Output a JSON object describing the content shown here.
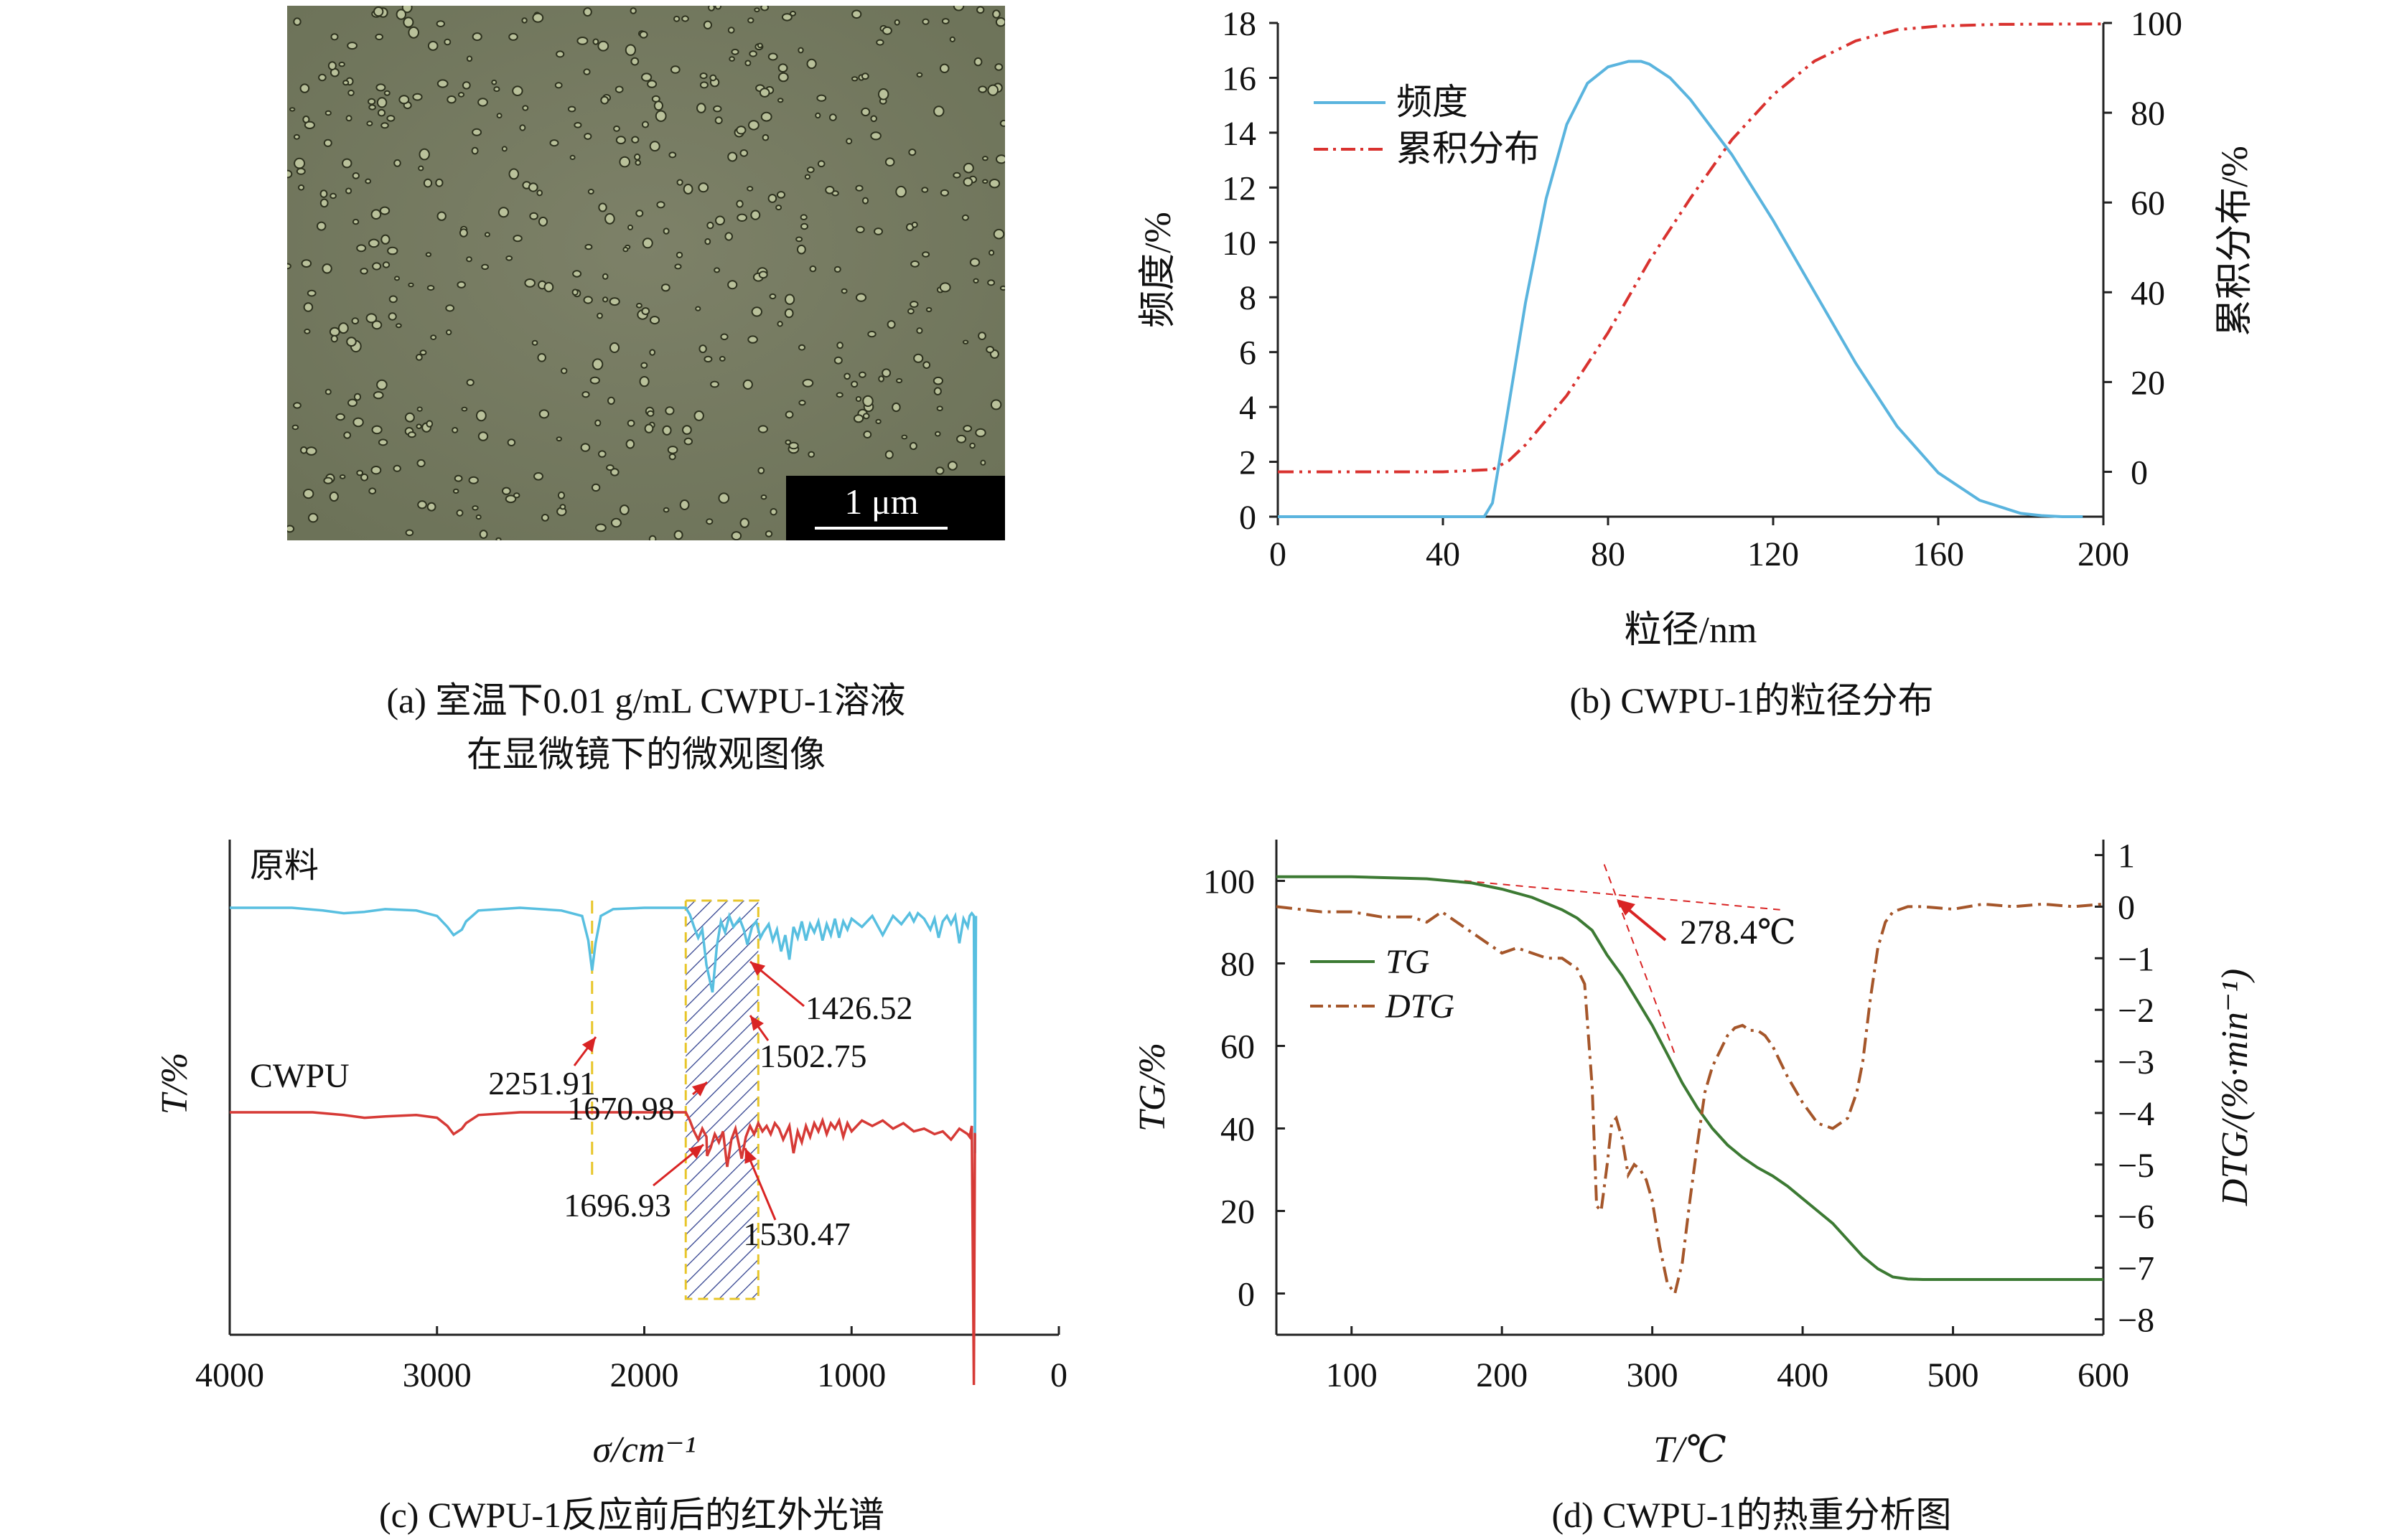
{
  "colors": {
    "freq": "#5ab4de",
    "cum": "#d9322f",
    "tg": "#3c7a33",
    "dtg": "#a5562a",
    "raw": "#58bfe0",
    "cwpu": "#d63a36",
    "hatch": "#2b3c8c",
    "guide": "#e8c62a",
    "arrow": "#d92424",
    "micro_bg": "#737960"
  },
  "panel_a": {
    "scale_bar": "1 μm",
    "caption_line1": "(a) 室温下0.01 g/mL CWPU-1溶液",
    "caption_line2": "在显微镜下的微观图像"
  },
  "panel_b": {
    "caption": "(b) CWPU-1的粒径分布"
  },
  "panel_c": {
    "caption": "(c) CWPU-1反应前后的红外光谱"
  },
  "panel_d": {
    "caption": "(d) CWPU-1的热重分析图"
  },
  "chart_data": [
    {
      "type": "line",
      "xlabel": "粒径/nm",
      "ylabel": "频度/%",
      "y2label": "累积分布/%",
      "xlim": [
        0,
        200
      ],
      "ylim": [
        0,
        18
      ],
      "y2lim": [
        -10,
        100
      ],
      "xticks": [
        "0",
        "40",
        "80",
        "120",
        "160",
        "200"
      ],
      "yticks": [
        "0",
        "2",
        "4",
        "6",
        "8",
        "10",
        "12",
        "14",
        "16",
        "18"
      ],
      "y2ticks": [
        "0",
        "20",
        "40",
        "60",
        "80",
        "100"
      ],
      "legend_position": "top-left",
      "series": [
        {
          "name": "频度",
          "axis": "left",
          "style": "solid",
          "x": [
            0,
            50,
            52,
            55,
            60,
            65,
            70,
            75,
            80,
            85,
            88,
            90,
            95,
            100,
            110,
            120,
            130,
            140,
            150,
            160,
            170,
            180,
            185,
            190,
            195
          ],
          "y": [
            0,
            0,
            0.5,
            3.2,
            7.8,
            11.6,
            14.3,
            15.8,
            16.4,
            16.6,
            16.6,
            16.5,
            16.0,
            15.2,
            13.2,
            10.8,
            8.2,
            5.6,
            3.3,
            1.6,
            0.6,
            0.12,
            0.04,
            0,
            0
          ]
        },
        {
          "name": "累积分布",
          "axis": "right",
          "style": "dashdot",
          "x": [
            0,
            40,
            52,
            56,
            60,
            70,
            80,
            90,
            100,
            110,
            120,
            130,
            140,
            150,
            160,
            175,
            200
          ],
          "y": [
            0,
            0,
            0.5,
            2.5,
            6,
            17,
            31,
            47,
            61,
            74,
            84,
            91.5,
            96,
            98.5,
            99.3,
            99.7,
            99.8
          ]
        }
      ]
    },
    {
      "type": "line",
      "xlabel": "σ/cm⁻¹",
      "ylabel": "T/%",
      "xlim": [
        4000,
        0
      ],
      "xticks": [
        "4000",
        "3000",
        "2000",
        "1000",
        "0"
      ],
      "series": [
        {
          "name": "原料",
          "offset": "top",
          "x": [
            4000,
            3700,
            3550,
            3450,
            3350,
            3250,
            3100,
            3000,
            2950,
            2920,
            2880,
            2860,
            2800,
            2600,
            2400,
            2300,
            2270,
            2251.91,
            2235,
            2210,
            2150,
            2000,
            1800,
            1780,
            1760,
            1740,
            1720,
            1700,
            1670.98,
            1650,
            1630,
            1610,
            1590,
            1570,
            1540,
            1520,
            1502.75,
            1480,
            1460,
            1440,
            1426.52,
            1400,
            1380,
            1360,
            1340,
            1320,
            1300,
            1280,
            1260,
            1240,
            1220,
            1200,
            1180,
            1160,
            1140,
            1120,
            1100,
            1080,
            1060,
            1040,
            1020,
            1000,
            950,
            900,
            850,
            800,
            760,
            720,
            700,
            680,
            650,
            620,
            600,
            580,
            560,
            540,
            520,
            500,
            480,
            460,
            440,
            430,
            420,
            410,
            405,
            400
          ],
          "y": [
            0,
            0,
            -2,
            -4,
            -3,
            -1,
            -2,
            -6,
            -14,
            -20,
            -16,
            -10,
            -2,
            0,
            -2,
            -6,
            -24,
            -46,
            -26,
            -6,
            -1,
            0,
            0,
            -5,
            -14,
            -22,
            -16,
            -42,
            -62,
            -28,
            -10,
            -18,
            -6,
            -14,
            -8,
            -16,
            -27,
            -14,
            -10,
            -22,
            -18,
            -12,
            -24,
            -16,
            -32,
            -20,
            -38,
            -14,
            -22,
            -10,
            -24,
            -12,
            -18,
            -10,
            -24,
            -12,
            -20,
            -8,
            -22,
            -10,
            -16,
            -8,
            -14,
            -6,
            -20,
            -6,
            -12,
            -4,
            -10,
            -4,
            -8,
            -16,
            -8,
            -22,
            -10,
            -6,
            -12,
            -6,
            -26,
            -8,
            -14,
            -6,
            -4,
            -6,
            -180,
            -6
          ]
        },
        {
          "name": "CWPU",
          "offset": "bottom",
          "x": [
            4000,
            3600,
            3450,
            3350,
            3250,
            3100,
            3000,
            2950,
            2920,
            2880,
            2860,
            2800,
            2600,
            2200,
            1900,
            1800,
            1780,
            1760,
            1740,
            1720,
            1700,
            1696.93,
            1680,
            1660,
            1640,
            1620,
            1600,
            1580,
            1560,
            1540,
            1530.47,
            1510,
            1490,
            1470,
            1450,
            1430,
            1410,
            1390,
            1370,
            1350,
            1330,
            1300,
            1280,
            1260,
            1240,
            1220,
            1200,
            1180,
            1160,
            1140,
            1120,
            1100,
            1080,
            1060,
            1040,
            1020,
            1000,
            950,
            900,
            850,
            800,
            750,
            700,
            650,
            600,
            560,
            520,
            480,
            440,
            430,
            420,
            410,
            405,
            400
          ],
          "y": [
            0,
            0,
            -2,
            -4,
            -3,
            -2,
            -4,
            -10,
            -16,
            -12,
            -8,
            -2,
            0,
            0,
            0,
            0,
            -6,
            -14,
            -20,
            -12,
            -18,
            -32,
            -26,
            -16,
            -22,
            -14,
            -40,
            -20,
            -12,
            -26,
            -34,
            -18,
            -10,
            -16,
            -8,
            -14,
            -10,
            -16,
            -8,
            -12,
            -20,
            -10,
            -30,
            -14,
            -22,
            -10,
            -18,
            -8,
            -14,
            -6,
            -16,
            -8,
            -12,
            -6,
            -18,
            -8,
            -14,
            -6,
            -10,
            -6,
            -12,
            -8,
            -14,
            -12,
            -16,
            -14,
            -20,
            -12,
            -16,
            -18,
            -10,
            -200,
            -16,
            -16
          ]
        }
      ],
      "peak_labels": [
        "2251.91",
        "1670.98",
        "1426.52",
        "1502.75",
        "1696.93",
        "1530.47"
      ],
      "series_labels": [
        "原料",
        "CWPU"
      ]
    },
    {
      "type": "line",
      "xlabel": "T/℃",
      "ylabel": "TG/%",
      "y2label": "DTG/(%·min⁻¹)",
      "xlim": [
        50,
        600
      ],
      "ylim": [
        -10,
        110
      ],
      "y2lim": [
        -8.3,
        1.3
      ],
      "xticks": [
        "100",
        "200",
        "300",
        "400",
        "500",
        "600"
      ],
      "yticks": [
        "0",
        "20",
        "40",
        "60",
        "80",
        "100"
      ],
      "y2ticks": [
        "1",
        "0",
        "−1",
        "−2",
        "−3",
        "−4",
        "−5",
        "−6",
        "−7",
        "−8"
      ],
      "legend_position": "left-middle",
      "annotation": "278.4℃",
      "series": [
        {
          "name": "TG",
          "axis": "left",
          "style": "solid",
          "x": [
            50,
            100,
            150,
            180,
            200,
            220,
            240,
            250,
            260,
            270,
            280,
            290,
            300,
            310,
            320,
            330,
            340,
            350,
            360,
            370,
            380,
            390,
            400,
            410,
            420,
            430,
            440,
            450,
            460,
            470,
            480,
            500,
            550,
            600
          ],
          "y": [
            101,
            101,
            100.5,
            99.5,
            98,
            96,
            93,
            91,
            88,
            82,
            77,
            71,
            65,
            58,
            51,
            45,
            40,
            36,
            33,
            30.5,
            28.5,
            26,
            23,
            20,
            17,
            13,
            9,
            6,
            4,
            3.5,
            3.4,
            3.4,
            3.4,
            3.4
          ]
        },
        {
          "name": "DTG",
          "axis": "right",
          "style": "dashdot",
          "x": [
            50,
            80,
            100,
            120,
            140,
            150,
            160,
            170,
            180,
            190,
            200,
            210,
            220,
            230,
            240,
            250,
            255,
            260,
            263,
            266,
            270,
            273,
            276,
            280,
            284,
            288,
            292,
            296,
            300,
            305,
            310,
            315,
            320,
            325,
            330,
            335,
            340,
            345,
            350,
            355,
            360,
            365,
            370,
            375,
            380,
            390,
            400,
            410,
            420,
            430,
            436,
            440,
            445,
            450,
            455,
            460,
            470,
            480,
            500,
            520,
            540,
            560,
            580,
            600
          ],
          "y": [
            0,
            -0.1,
            -0.1,
            -0.2,
            -0.2,
            -0.3,
            -0.1,
            -0.3,
            -0.5,
            -0.7,
            -0.9,
            -0.8,
            -0.9,
            -1.0,
            -1.0,
            -1.2,
            -1.5,
            -3.5,
            -5.8,
            -5.9,
            -5.0,
            -4.2,
            -4.1,
            -4.5,
            -5.2,
            -5.0,
            -5.1,
            -5.3,
            -5.7,
            -6.6,
            -7.3,
            -7.5,
            -6.9,
            -5.7,
            -4.6,
            -3.6,
            -3.1,
            -2.8,
            -2.5,
            -2.35,
            -2.3,
            -2.4,
            -2.4,
            -2.5,
            -2.7,
            -3.3,
            -3.8,
            -4.2,
            -4.3,
            -4.1,
            -3.6,
            -3.0,
            -1.8,
            -0.8,
            -0.3,
            -0.1,
            0,
            0,
            -0.05,
            0.05,
            0,
            0.05,
            0,
            0.05
          ]
        }
      ]
    }
  ]
}
